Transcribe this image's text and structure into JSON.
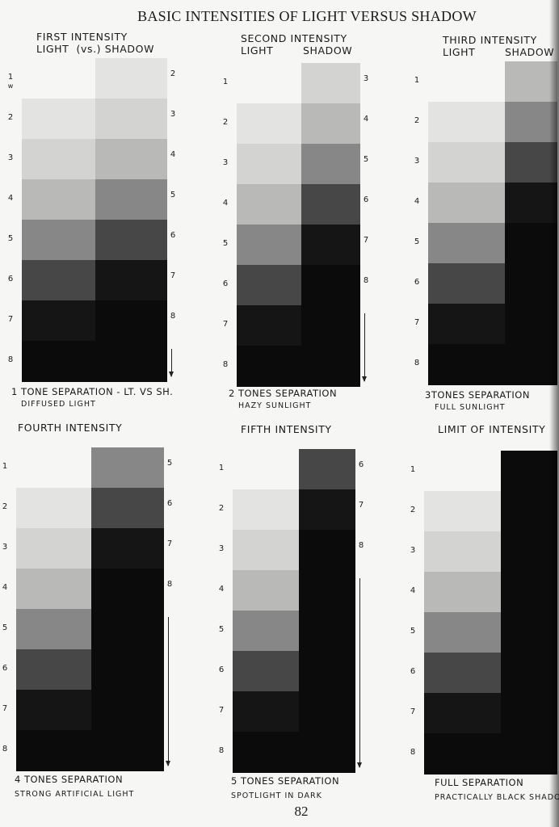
{
  "page_title": "BASIC INTENSITIES OF LIGHT VERSUS SHADOW",
  "page_number": "82",
  "tone_colors": [
    "#f6f6f5",
    "#e3e3e2",
    "#d3d3d2",
    "#b9b9b8",
    "#878787",
    "#474747",
    "#151515",
    "#0b0b0b"
  ],
  "panels": [
    {
      "header": [
        "FIRST INTENSITY",
        "LIGHT  (vs.) SHADOW"
      ],
      "shadow_offset": 1,
      "light_numbers": [
        "1",
        "2",
        "3",
        "4",
        "5",
        "6",
        "7",
        "8"
      ],
      "light_note": "w",
      "shadow_numbers": [
        "2",
        "3",
        "4",
        "5",
        "6",
        "7",
        "8"
      ],
      "caption": [
        "1 TONE SEPARATION - LT. VS SH.",
        "DIFFUSED LIGHT"
      ]
    },
    {
      "header": [
        "SECOND INTENSITY",
        "LIGHT        SHADOW"
      ],
      "shadow_offset": 2,
      "light_numbers": [
        "1",
        "2",
        "3",
        "4",
        "5",
        "6",
        "7",
        "8"
      ],
      "shadow_numbers": [
        "3",
        "4",
        "5",
        "6",
        "7",
        "8"
      ],
      "caption": [
        "2 TONES SEPARATION",
        "HAZY SUNLIGHT"
      ]
    },
    {
      "header": [
        "THIRD INTENSITY",
        "LIGHT        SHADOW"
      ],
      "shadow_offset": 3,
      "light_numbers": [
        "1",
        "2",
        "3",
        "4",
        "5",
        "6",
        "7",
        "8"
      ],
      "shadow_numbers": [],
      "caption": [
        "3TONES SEPARATION",
        "FULL SUNLIGHT"
      ]
    },
    {
      "header": [
        "FOURTH INTENSITY"
      ],
      "shadow_offset": 4,
      "light_numbers": [
        "1",
        "2",
        "3",
        "4",
        "5",
        "6",
        "7",
        "8"
      ],
      "shadow_numbers": [
        "5",
        "6",
        "7",
        "8"
      ],
      "caption": [
        "4 TONES SEPARATION",
        "STRONG ARTIFICIAL LIGHT"
      ]
    },
    {
      "header": [
        "FIFTH INTENSITY"
      ],
      "shadow_offset": 5,
      "light_numbers": [
        "1",
        "2",
        "3",
        "4",
        "5",
        "6",
        "7",
        "8"
      ],
      "shadow_numbers": [
        "6",
        "7",
        "8"
      ],
      "caption": [
        "5 TONES SEPARATION",
        "SPOTLIGHT IN DARK"
      ]
    },
    {
      "header": [
        "LIMIT OF INTENSITY"
      ],
      "shadow_offset": 7,
      "light_numbers": [
        "1",
        "2",
        "3",
        "4",
        "5",
        "6",
        "7",
        "8"
      ],
      "shadow_numbers": [],
      "caption": [
        "FULL SEPARATION",
        "PRACTICALLY BLACK SHADOW"
      ]
    }
  ]
}
